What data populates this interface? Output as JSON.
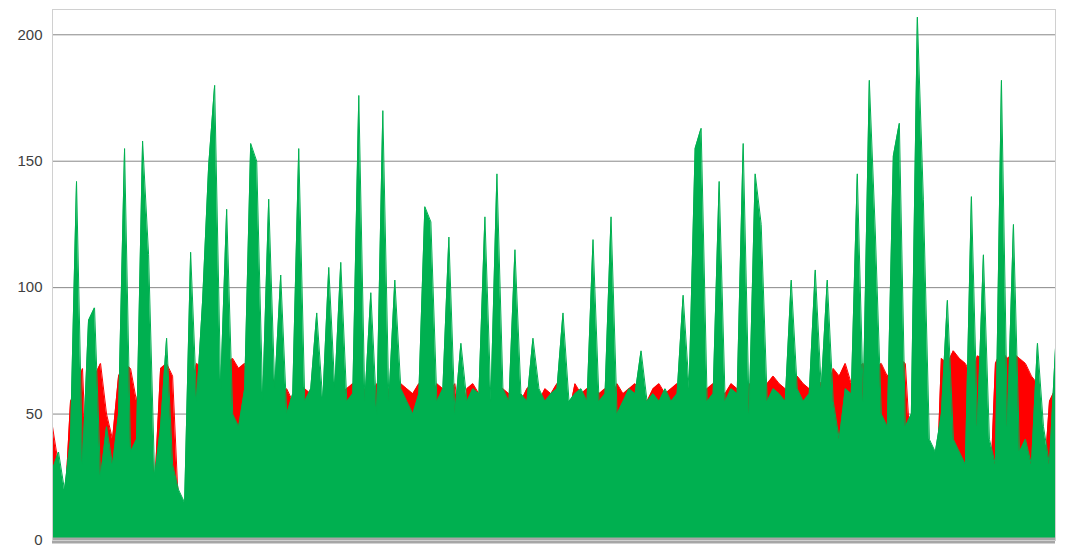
{
  "chart_data": {
    "type": "area",
    "x": [
      0,
      1,
      2,
      3,
      4,
      5,
      6,
      7,
      8,
      9,
      10,
      11,
      12,
      13,
      14,
      15,
      16,
      17,
      18,
      19,
      20,
      21,
      22,
      23,
      24,
      25,
      26,
      27,
      28,
      29,
      30,
      31,
      32,
      33,
      34,
      35,
      36,
      37,
      38,
      39,
      40,
      41,
      42,
      43,
      44,
      45,
      46,
      47,
      48,
      49,
      50,
      51,
      52,
      53,
      54,
      55,
      56,
      57,
      58,
      59,
      60,
      61,
      62,
      63,
      64,
      65,
      66,
      67,
      68,
      69,
      70,
      71,
      72,
      73,
      74,
      75,
      76,
      77,
      78,
      79,
      80,
      81,
      82,
      83,
      84,
      85,
      86,
      87,
      88,
      89,
      90,
      91,
      92,
      93,
      94,
      95,
      96,
      97,
      98,
      99,
      100,
      101,
      102,
      103,
      104,
      105,
      106,
      107,
      108,
      109,
      110,
      111,
      112,
      113,
      114,
      115,
      116,
      117,
      118,
      119,
      120,
      121,
      122,
      123,
      124,
      125,
      126,
      127,
      128,
      129,
      130,
      131,
      132,
      133,
      134,
      135,
      136,
      137,
      138,
      139,
      140,
      141,
      142,
      143,
      144,
      145,
      146,
      147,
      148,
      149,
      150,
      151,
      152,
      153,
      154,
      155,
      156,
      157,
      158,
      159,
      160,
      161,
      162,
      163,
      164,
      165,
      166,
      167
    ],
    "series": [
      {
        "color": "#ff0000",
        "values": [
          45,
          30,
          10,
          55,
          60,
          68,
          8,
          65,
          70,
          50,
          40,
          65,
          70,
          68,
          55,
          70,
          60,
          20,
          68,
          70,
          65,
          12,
          8,
          60,
          70,
          68,
          65,
          70,
          55,
          70,
          72,
          68,
          70,
          60,
          65,
          55,
          68,
          62,
          58,
          60,
          55,
          62,
          60,
          58,
          62,
          50,
          60,
          62,
          58,
          60,
          62,
          58,
          60,
          55,
          62,
          58,
          60,
          50,
          62,
          60,
          58,
          62,
          60,
          55,
          62,
          60,
          58,
          62,
          45,
          60,
          62,
          58,
          60,
          55,
          62,
          60,
          58,
          62,
          55,
          60,
          62,
          55,
          60,
          58,
          62,
          60,
          50,
          62,
          58,
          60,
          62,
          58,
          60,
          55,
          62,
          58,
          60,
          62,
          58,
          55,
          60,
          62,
          58,
          60,
          62,
          58,
          60,
          62,
          58,
          60,
          62,
          60,
          58,
          62,
          60,
          58,
          62,
          60,
          58,
          62,
          65,
          62,
          60,
          58,
          65,
          62,
          60,
          65,
          62,
          60,
          68,
          65,
          70,
          62,
          68,
          70,
          65,
          68,
          70,
          65,
          68,
          72,
          70,
          30,
          72,
          75,
          20,
          5,
          72,
          70,
          75,
          72,
          70,
          65,
          73,
          72,
          10,
          70,
          75,
          72,
          74,
          72,
          70,
          65,
          62,
          20,
          55,
          60
        ]
      },
      {
        "color": "#00b050",
        "values": [
          28,
          35,
          20,
          40,
          142,
          30,
          87,
          92,
          25,
          45,
          30,
          50,
          155,
          35,
          40,
          158,
          113,
          25,
          45,
          80,
          30,
          20,
          15,
          114,
          55,
          95,
          148,
          180,
          60,
          131,
          50,
          45,
          60,
          157,
          150,
          55,
          135,
          60,
          105,
          50,
          58,
          155,
          55,
          60,
          90,
          55,
          108,
          60,
          110,
          55,
          58,
          176,
          55,
          98,
          50,
          170,
          55,
          103,
          60,
          55,
          50,
          58,
          132,
          126,
          55,
          60,
          120,
          50,
          78,
          55,
          60,
          58,
          128,
          55,
          145,
          60,
          55,
          115,
          58,
          55,
          80,
          60,
          55,
          58,
          60,
          90,
          55,
          58,
          60,
          55,
          119,
          55,
          58,
          128,
          50,
          55,
          60,
          58,
          75,
          55,
          58,
          55,
          60,
          55,
          58,
          97,
          60,
          155,
          163,
          55,
          58,
          142,
          55,
          60,
          58,
          157,
          50,
          145,
          125,
          55,
          60,
          58,
          55,
          103,
          60,
          55,
          58,
          107,
          60,
          103,
          55,
          40,
          60,
          58,
          145,
          55,
          182,
          122,
          50,
          45,
          152,
          165,
          45,
          50,
          207,
          135,
          40,
          35,
          50,
          95,
          40,
          35,
          30,
          136,
          45,
          113,
          40,
          30,
          182,
          45,
          125,
          35,
          40,
          30,
          78,
          45,
          30,
          76
        ]
      }
    ],
    "xlim": [
      0,
      167
    ],
    "ylim": [
      0,
      210
    ],
    "yticks": [
      0,
      50,
      100,
      150,
      200
    ],
    "grid": true,
    "tick_labels": "y"
  }
}
